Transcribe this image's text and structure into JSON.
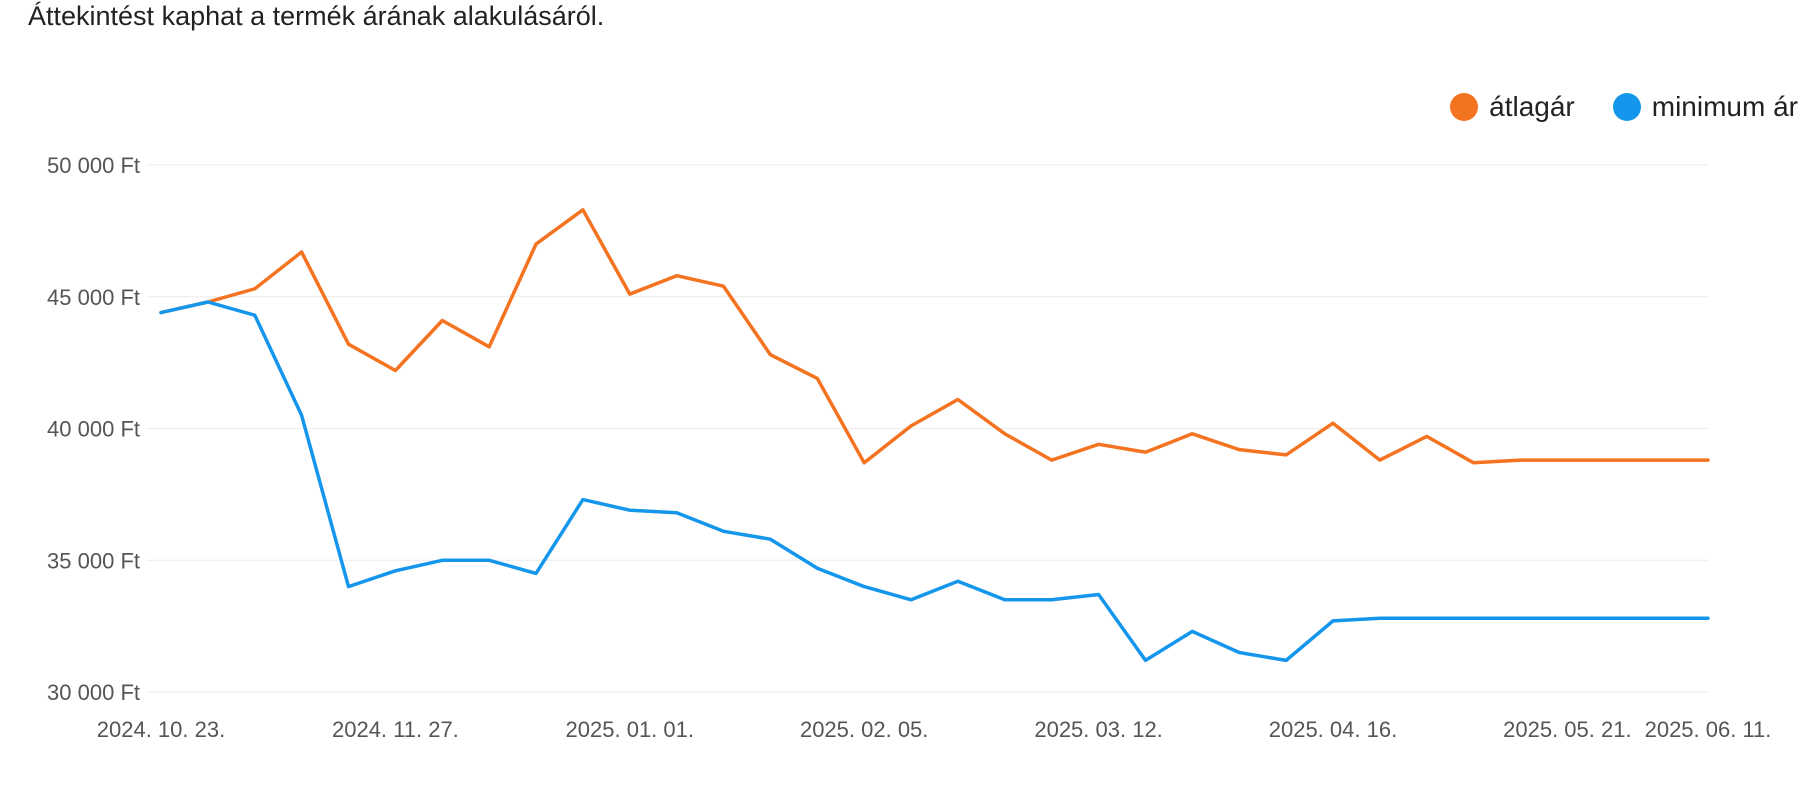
{
  "subtitle": "Áttekintést kaphat a termék árának alakulásáról.",
  "legend": [
    {
      "label": "átlagár",
      "color": "#F47321"
    },
    {
      "label": "minimum ár",
      "color": "#1596ED"
    }
  ],
  "chart_data": {
    "type": "line",
    "title": "",
    "xlabel": "",
    "ylabel": "",
    "ylim": [
      30000,
      50000
    ],
    "y_ticks": [
      {
        "value": 30000,
        "label": "30 000 Ft"
      },
      {
        "value": 35000,
        "label": "35 000 Ft"
      },
      {
        "value": 40000,
        "label": "40 000 Ft"
      },
      {
        "value": 45000,
        "label": "45 000 Ft"
      },
      {
        "value": 50000,
        "label": "50 000 Ft"
      }
    ],
    "x": [
      "2024. 10. 23.",
      "2024. 10. 30.",
      "2024. 11. 06.",
      "2024. 11. 13.",
      "2024. 11. 20.",
      "2024. 11. 27.",
      "2024. 12. 04.",
      "2024. 12. 11.",
      "2024. 12. 18.",
      "2024. 12. 25.",
      "2025. 01. 01.",
      "2025. 01. 08.",
      "2025. 01. 15.",
      "2025. 01. 22.",
      "2025. 01. 29.",
      "2025. 02. 05.",
      "2025. 02. 12.",
      "2025. 02. 19.",
      "2025. 02. 26.",
      "2025. 03. 05.",
      "2025. 03. 12.",
      "2025. 03. 19.",
      "2025. 03. 26.",
      "2025. 04. 02.",
      "2025. 04. 09.",
      "2025. 04. 16.",
      "2025. 04. 23.",
      "2025. 04. 30.",
      "2025. 05. 07.",
      "2025. 05. 14.",
      "2025. 05. 21.",
      "2025. 05. 28.",
      "2025. 06. 04.",
      "2025. 06. 11."
    ],
    "x_ticks": [
      "2024. 10. 23.",
      "2024. 11. 27.",
      "2025. 01. 01.",
      "2025. 02. 05.",
      "2025. 03. 12.",
      "2025. 04. 16.",
      "2025. 05. 21.",
      "2025. 06. 11."
    ],
    "x_tick_indices": [
      0,
      5,
      10,
      15,
      20,
      25,
      30,
      33
    ],
    "series": [
      {
        "name": "átlagár",
        "color": "#F47321",
        "values": [
          44400,
          44800,
          45300,
          46700,
          43200,
          42200,
          44100,
          43100,
          47000,
          48300,
          45100,
          45800,
          45400,
          42800,
          41900,
          38700,
          40100,
          41100,
          39800,
          38800,
          39400,
          39100,
          39800,
          39200,
          39000,
          40200,
          38800,
          39700,
          38700,
          38800,
          38800,
          38800,
          38800,
          38800
        ]
      },
      {
        "name": "minimum ár",
        "color": "#1596ED",
        "values": [
          44400,
          44800,
          44300,
          40500,
          34000,
          34600,
          35000,
          35000,
          34500,
          37300,
          36900,
          36800,
          36100,
          35800,
          34700,
          34000,
          33500,
          34200,
          33500,
          33500,
          33700,
          31200,
          32300,
          31500,
          31200,
          32700,
          32800,
          32800,
          32800,
          32800,
          32800,
          32800,
          32800,
          32800
        ]
      }
    ]
  }
}
